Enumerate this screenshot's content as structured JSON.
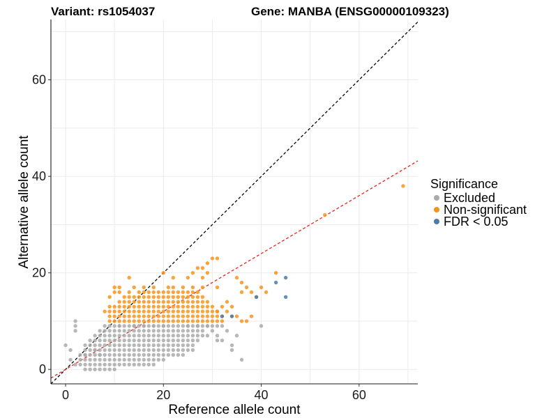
{
  "chart_data": {
    "type": "scatter",
    "title_left": "Variant: rs1054037",
    "title_right": "Gene: MANBA (ENSG00000109323)",
    "xlabel": "Reference allele count",
    "ylabel": "Alternative allele count",
    "xlim": [
      -3,
      72
    ],
    "ylim": [
      -3,
      72.5
    ],
    "xticks": [
      0,
      20,
      40,
      60
    ],
    "yticks": [
      0,
      20,
      40,
      60
    ],
    "grid": true,
    "legend": {
      "title": "Significance",
      "position": "right",
      "entries": [
        {
          "label": "Excluded",
          "color": "#aaaaaa"
        },
        {
          "label": "Non-significant",
          "color": "#f7941d"
        },
        {
          "label": "FDR < 0.05",
          "color": "#4a7bab"
        }
      ]
    },
    "reference_lines": [
      {
        "name": "identity",
        "slope": 1,
        "intercept": 0,
        "color": "#000000",
        "style": "dashed"
      },
      {
        "name": "fit",
        "slope": 0.6,
        "intercept": 0,
        "color": "#e8231a",
        "style": "dashed"
      }
    ],
    "series": [
      {
        "name": "Excluded",
        "color": "#aaaaaa",
        "points": [
          [
            0,
            5
          ],
          [
            1,
            4
          ],
          [
            1,
            2
          ],
          [
            2,
            10
          ],
          [
            2,
            9
          ],
          [
            2,
            8
          ],
          [
            4,
            3
          ],
          [
            6,
            4
          ],
          [
            7,
            3
          ],
          [
            32,
            9
          ],
          [
            34,
            4
          ],
          [
            34,
            5
          ],
          [
            36,
            2
          ],
          [
            40,
            9
          ],
          [
            8,
            9
          ],
          [
            9,
            9
          ],
          [
            11,
            9
          ],
          [
            14,
            9
          ],
          [
            16,
            9
          ],
          [
            18,
            9
          ],
          [
            20,
            9
          ],
          [
            25,
            9
          ],
          [
            27,
            9
          ],
          [
            29,
            9
          ],
          [
            31,
            9
          ],
          [
            29,
            7
          ],
          [
            30,
            8
          ],
          [
            31,
            7
          ],
          [
            31,
            6
          ],
          [
            32,
            6
          ],
          [
            33,
            8
          ],
          [
            35,
            7
          ]
        ],
        "grid_ranges": [
          {
            "y": 0,
            "x": [
              4,
              10
            ]
          },
          {
            "y": 1,
            "x": [
              2,
              18
            ]
          },
          {
            "y": 2,
            "x": [
              3,
              20
            ]
          },
          {
            "y": 3,
            "x": [
              3,
              24
            ]
          },
          {
            "y": 4,
            "x": [
              4,
              26
            ]
          },
          {
            "y": 5,
            "x": [
              4,
              26
            ]
          },
          {
            "y": 6,
            "x": [
              5,
              27
            ]
          },
          {
            "y": 7,
            "x": [
              6,
              28
            ]
          },
          {
            "y": 8,
            "x": [
              7,
              28
            ]
          },
          {
            "y": 9,
            "x": [
              10,
              30
            ]
          }
        ]
      },
      {
        "name": "Non-significant",
        "color": "#f7941d",
        "points": [
          [
            69,
            38
          ],
          [
            53,
            32
          ],
          [
            43,
            20
          ],
          [
            41,
            16
          ],
          [
            38,
            16
          ],
          [
            36,
            16
          ],
          [
            39,
            15
          ],
          [
            40,
            17
          ],
          [
            37,
            17
          ],
          [
            35,
            19
          ],
          [
            36,
            18
          ],
          [
            31,
            23
          ],
          [
            30,
            23
          ],
          [
            29,
            22
          ],
          [
            28,
            21
          ],
          [
            27,
            21
          ],
          [
            29,
            20
          ],
          [
            26,
            20
          ],
          [
            25,
            19
          ],
          [
            28,
            19
          ],
          [
            20,
            20
          ],
          [
            22,
            19
          ],
          [
            13,
            19
          ],
          [
            33,
            14
          ],
          [
            34,
            13
          ],
          [
            32,
            13
          ],
          [
            31,
            12
          ],
          [
            33,
            12
          ],
          [
            34,
            11
          ],
          [
            35,
            11
          ],
          [
            37,
            10
          ],
          [
            36,
            10
          ],
          [
            38,
            11
          ],
          [
            10,
            17
          ],
          [
            11,
            17
          ],
          [
            10,
            16
          ],
          [
            11,
            16
          ],
          [
            13,
            16
          ],
          [
            14,
            17
          ],
          [
            16,
            17
          ],
          [
            18,
            17
          ],
          [
            21,
            17
          ],
          [
            22,
            17
          ],
          [
            24,
            17
          ],
          [
            26,
            17
          ],
          [
            28,
            17
          ],
          [
            31,
            17
          ],
          [
            9,
            12
          ],
          [
            9,
            11
          ],
          [
            9,
            10
          ],
          [
            8,
            12
          ],
          [
            9,
            13
          ],
          [
            9,
            15
          ]
        ],
        "grid_ranges": [
          {
            "y": 10,
            "x": [
              10,
              32
            ]
          },
          {
            "y": 11,
            "x": [
              10,
              32
            ]
          },
          {
            "y": 12,
            "x": [
              10,
              31
            ]
          },
          {
            "y": 13,
            "x": [
              10,
              30
            ]
          },
          {
            "y": 14,
            "x": [
              11,
              29
            ]
          },
          {
            "y": 15,
            "x": [
              12,
              28
            ]
          },
          {
            "y": 16,
            "x": [
              15,
              27
            ]
          }
        ]
      },
      {
        "name": "FDR < 0.05",
        "color": "#4a7bab",
        "points": [
          [
            45,
            19
          ],
          [
            43,
            18
          ],
          [
            45,
            15
          ],
          [
            39,
            15
          ],
          [
            34,
            11
          ],
          [
            32,
            11
          ]
        ]
      }
    ]
  }
}
